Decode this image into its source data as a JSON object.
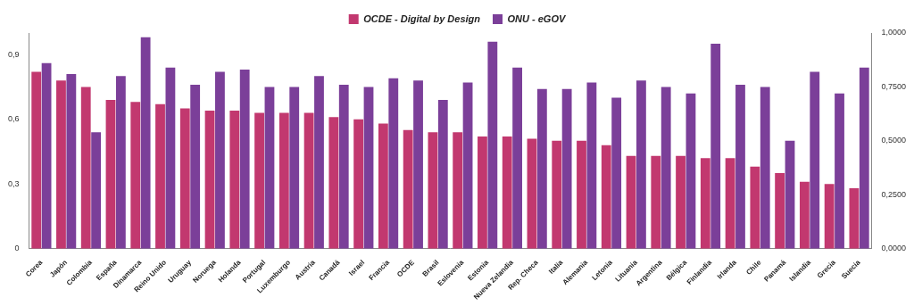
{
  "chart_data": {
    "type": "bar",
    "categories": [
      "Corea",
      "Japón",
      "Colombia",
      "España",
      "Dinamarca",
      "Reino Unido",
      "Uruguay",
      "Noruega",
      "Holanda",
      "Portugal",
      "Luxemburgo",
      "Austria",
      "Canadá",
      "Israel",
      "Francia",
      "OCDE",
      "Brasil",
      "Eslovenia",
      "Estonia",
      "Nueva Zelandia",
      "Rep. Checa",
      "Italia",
      "Alemania",
      "Letonia",
      "Lituania",
      "Argentina",
      "Bélgica",
      "Finlandia",
      "Irlanda",
      "Chile",
      "Panamá",
      "Islandia",
      "Grecia",
      "Suecia"
    ],
    "series": [
      {
        "name": "OCDE - Digital by Design",
        "color": "#c2386f",
        "values": [
          0.82,
          0.78,
          0.75,
          0.69,
          0.68,
          0.67,
          0.65,
          0.64,
          0.64,
          0.63,
          0.63,
          0.63,
          0.61,
          0.6,
          0.58,
          0.55,
          0.54,
          0.54,
          0.52,
          0.52,
          0.51,
          0.5,
          0.5,
          0.48,
          0.43,
          0.43,
          0.43,
          0.42,
          0.42,
          0.38,
          0.35,
          0.31,
          0.3,
          0.28
        ]
      },
      {
        "name": "ONU - eGOV",
        "color": "#7b3f99",
        "axis": "y2",
        "values": [
          0.86,
          0.81,
          0.54,
          0.8,
          0.98,
          0.84,
          0.76,
          0.82,
          0.83,
          0.75,
          0.75,
          0.8,
          0.76,
          0.75,
          0.79,
          0.78,
          0.69,
          0.77,
          0.96,
          0.84,
          0.74,
          0.74,
          0.77,
          0.7,
          0.78,
          0.75,
          0.72,
          0.95,
          0.76,
          0.75,
          0.5,
          0.82,
          0.72,
          0.84
        ]
      }
    ],
    "ylim": [
      0,
      1.0
    ],
    "yticks": [
      0,
      {
        "value": 0.3,
        "label": "0,3"
      },
      {
        "value": 0.6,
        "label": "0,6"
      },
      {
        "value": 0.9,
        "label": "0,9"
      }
    ],
    "y2lim": [
      0,
      1.0
    ],
    "y2ticks": [
      {
        "value": 0,
        "label": "0,0000"
      },
      {
        "value": 0.25,
        "label": "0,2500"
      },
      {
        "value": 0.5,
        "label": "0,5000"
      },
      {
        "value": 0.75,
        "label": "0,7500"
      },
      {
        "value": 1.0,
        "label": "1,0000"
      }
    ],
    "grid": false,
    "legend": "top"
  }
}
